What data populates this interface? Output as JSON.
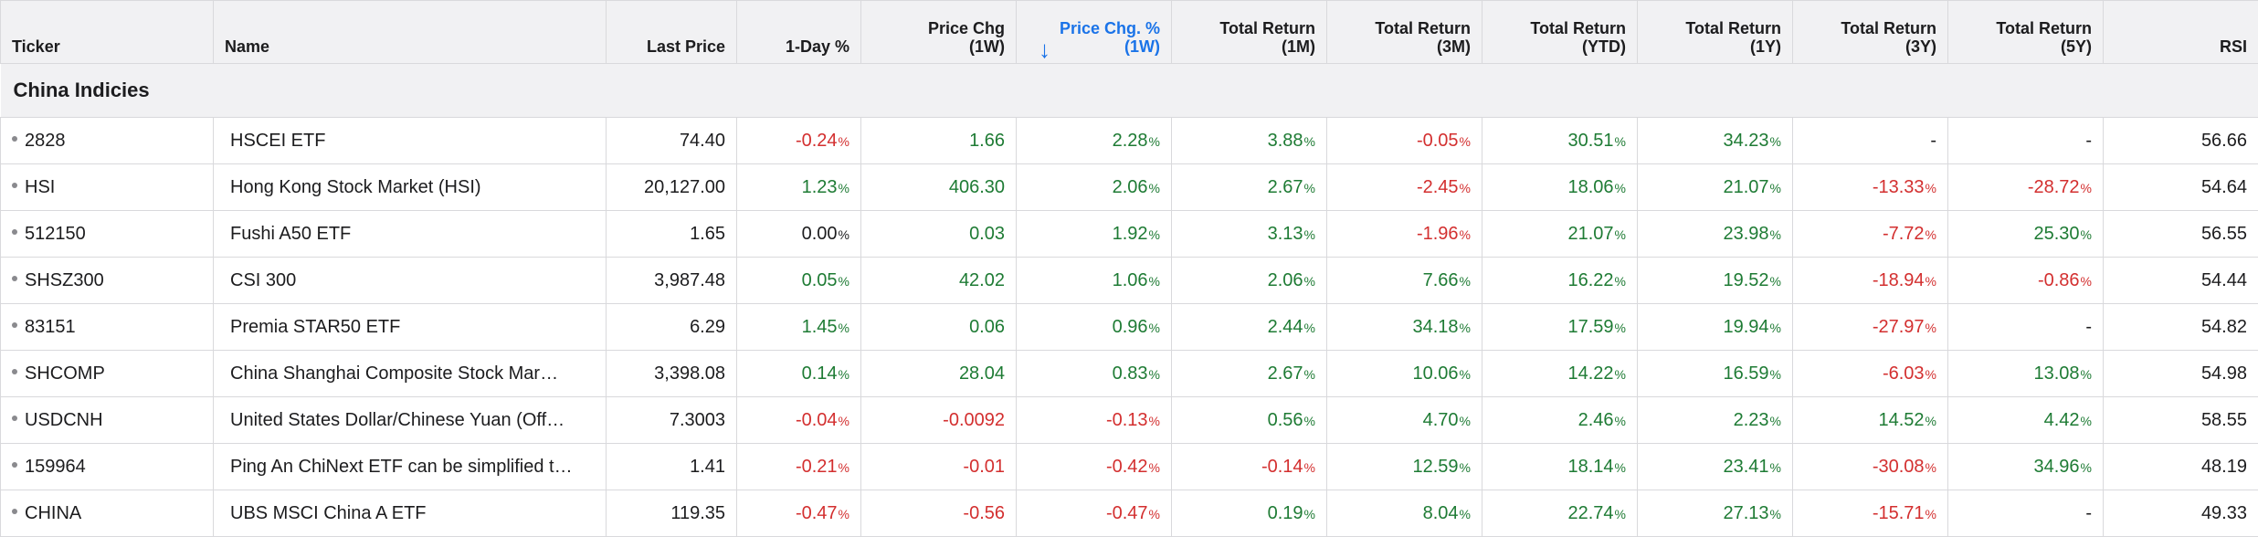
{
  "columns": [
    {
      "label": "Ticker"
    },
    {
      "label": "Name"
    },
    {
      "label": "Last Price"
    },
    {
      "label": "1-Day %"
    },
    {
      "label": "Price Chg",
      "sub": "(1W)"
    },
    {
      "label": "Price Chg. %",
      "sub": "(1W)"
    },
    {
      "label": "Total Return",
      "sub": "(1M)"
    },
    {
      "label": "Total Return",
      "sub": "(3M)"
    },
    {
      "label": "Total Return",
      "sub": "(YTD)"
    },
    {
      "label": "Total Return",
      "sub": "(1Y)"
    },
    {
      "label": "Total Return",
      "sub": "(3Y)"
    },
    {
      "label": "Total Return",
      "sub": "(5Y)"
    },
    {
      "label": "RSI"
    }
  ],
  "sort_icon": "arrow-down-icon",
  "colors": {
    "positive": "#1e7b34",
    "negative": "#d32f2f",
    "sorted": "#1a73e8"
  },
  "group": {
    "title": "China Indicies"
  },
  "rows": [
    {
      "ticker": "2828",
      "name": "HSCEI ETF",
      "last": "74.40",
      "day": "-0.24",
      "chg1w": "1.66",
      "chgpct1w": "2.28",
      "tr1m": "3.88",
      "tr3m": "-0.05",
      "trytd": "30.51",
      "tr1y": "34.23",
      "tr3y": "-",
      "tr5y": "-",
      "rsi": "56.66"
    },
    {
      "ticker": "HSI",
      "name": "Hong Kong Stock Market (HSI)",
      "last": "20,127.00",
      "day": "1.23",
      "chg1w": "406.30",
      "chgpct1w": "2.06",
      "tr1m": "2.67",
      "tr3m": "-2.45",
      "trytd": "18.06",
      "tr1y": "21.07",
      "tr3y": "-13.33",
      "tr5y": "-28.72",
      "rsi": "54.64"
    },
    {
      "ticker": "512150",
      "name": "Fushi A50 ETF",
      "last": "1.65",
      "day": "0.00",
      "chg1w": "0.03",
      "chgpct1w": "1.92",
      "tr1m": "3.13",
      "tr3m": "-1.96",
      "trytd": "21.07",
      "tr1y": "23.98",
      "tr3y": "-7.72",
      "tr5y": "25.30",
      "rsi": "56.55"
    },
    {
      "ticker": "SHSZ300",
      "name": "CSI 300",
      "last": "3,987.48",
      "day": "0.05",
      "chg1w": "42.02",
      "chgpct1w": "1.06",
      "tr1m": "2.06",
      "tr3m": "7.66",
      "trytd": "16.22",
      "tr1y": "19.52",
      "tr3y": "-18.94",
      "tr5y": "-0.86",
      "rsi": "54.44"
    },
    {
      "ticker": "83151",
      "name": "Premia STAR50 ETF",
      "last": "6.29",
      "day": "1.45",
      "chg1w": "0.06",
      "chgpct1w": "0.96",
      "tr1m": "2.44",
      "tr3m": "34.18",
      "trytd": "17.59",
      "tr1y": "19.94",
      "tr3y": "-27.97",
      "tr5y": "-",
      "rsi": "54.82"
    },
    {
      "ticker": "SHCOMP",
      "name": "China Shanghai Composite Stock Mar…",
      "last": "3,398.08",
      "day": "0.14",
      "chg1w": "28.04",
      "chgpct1w": "0.83",
      "tr1m": "2.67",
      "tr3m": "10.06",
      "trytd": "14.22",
      "tr1y": "16.59",
      "tr3y": "-6.03",
      "tr5y": "13.08",
      "rsi": "54.98"
    },
    {
      "ticker": "USDCNH",
      "name": "United States Dollar/Chinese Yuan (Off…",
      "last": "7.3003",
      "day": "-0.04",
      "chg1w": "-0.0092",
      "chgpct1w": "-0.13",
      "tr1m": "0.56",
      "tr3m": "4.70",
      "trytd": "2.46",
      "tr1y": "2.23",
      "tr3y": "14.52",
      "tr5y": "4.42",
      "rsi": "58.55"
    },
    {
      "ticker": "159964",
      "name": "Ping An ChiNext ETF can be simplified t…",
      "last": "1.41",
      "day": "-0.21",
      "chg1w": "-0.01",
      "chgpct1w": "-0.42",
      "tr1m": "-0.14",
      "tr3m": "12.59",
      "trytd": "18.14",
      "tr1y": "23.41",
      "tr3y": "-30.08",
      "tr5y": "34.96",
      "rsi": "48.19"
    },
    {
      "ticker": "CHINA",
      "name": "UBS MSCI China A ETF",
      "last": "119.35",
      "day": "-0.47",
      "chg1w": "-0.56",
      "chgpct1w": "-0.47",
      "tr1m": "0.19",
      "tr3m": "8.04",
      "trytd": "22.74",
      "tr1y": "27.13",
      "tr3y": "-15.71",
      "tr5y": "-",
      "rsi": "49.33"
    }
  ]
}
